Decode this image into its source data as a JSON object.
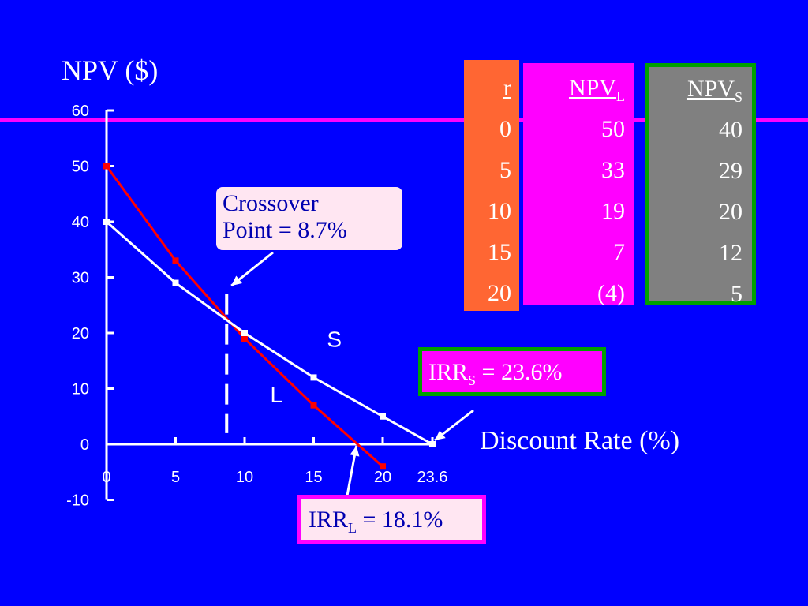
{
  "chart_data": {
    "type": "line",
    "ylabel": "NPV ($)",
    "xlabel": "Discount Rate (%)",
    "x_ticks": [
      "0",
      "5",
      "10",
      "15",
      "20",
      "23.6"
    ],
    "y_ticks": [
      "60",
      "50",
      "40",
      "30",
      "20",
      "10",
      "0",
      "-10"
    ],
    "xlim": [
      0,
      25
    ],
    "ylim": [
      -10,
      60
    ],
    "series": [
      {
        "name": "L",
        "color": "#FF0000",
        "x": [
          0,
          5,
          10,
          15,
          20
        ],
        "y": [
          50,
          33,
          19,
          7,
          -4
        ]
      },
      {
        "name": "S",
        "color": "#FFFFFF",
        "x": [
          0,
          5,
          10,
          15,
          20,
          23.6
        ],
        "y": [
          40,
          29,
          20,
          12,
          5,
          0
        ]
      }
    ],
    "crossover_x": 8.7,
    "crossover_label": [
      "Crossover",
      "Point  =  8.7%"
    ],
    "irr_s": {
      "prefix": "IRR",
      "sub": "S",
      "value": " = 23.6%"
    },
    "irr_l": {
      "prefix": "IRR",
      "sub": "L",
      "value": " = 18.1%"
    }
  },
  "table": {
    "r": {
      "header": "r",
      "values": [
        "0",
        "5",
        "10",
        "15",
        "20"
      ]
    },
    "npv_l": {
      "header": "NPV",
      "sub": "L",
      "values": [
        "50",
        "33",
        "19",
        "7",
        "(4)"
      ]
    },
    "npv_s": {
      "header": "NPV",
      "sub": "S",
      "values": [
        "40",
        "29",
        "20",
        "12",
        "5"
      ]
    }
  },
  "colors": {
    "background": "#0000FF",
    "magenta": "#FF00FF",
    "orange": "#FF6633",
    "gray": "#808080",
    "green": "#00A000"
  }
}
